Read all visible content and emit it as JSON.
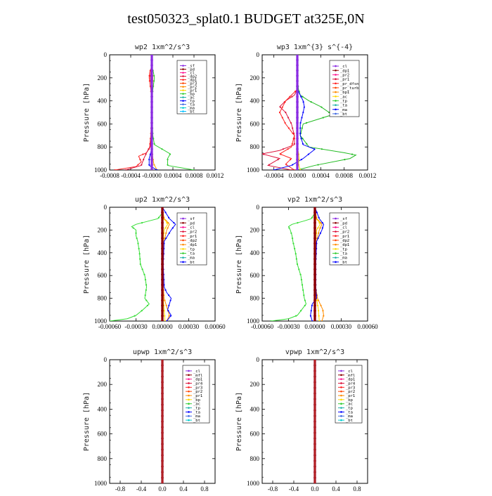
{
  "title": "test050323_splat0.1  BUDGET at325E,0N",
  "colors": {
    "sf": "#8a2be2",
    "pd": "#8b0000",
    "cl": "#ff1493",
    "dp1": "#dc143c",
    "dp2": "#ff2020",
    "dp3": "#ff4500",
    "pr1": "#ff6347",
    "pr2": "#ff8c00",
    "pr3": "#ffa500",
    "pr4": "#ff7f50",
    "bp": "#32cd32",
    "bp1": "#22bb22",
    "ac": "#20b2aa",
    "tp": "#0000ff",
    "ta": "#4169e1",
    "ma": "#00ced1",
    "bt": "#00bfff",
    "mfl": "#b22222",
    "pr_dfsn": "#ffd700",
    "pr_turb": "#ffc000",
    "dp2_green": "#33dd33"
  },
  "chart_data": [
    {
      "id": "wp2",
      "type": "line",
      "title": "wp2   1xm^2/s^3",
      "ylabel": "Pressure  [hPa]",
      "xlim": [
        -0.0008,
        0.0012
      ],
      "ylim": [
        1000,
        0
      ],
      "xticks": [
        -0.0008,
        -0.0004,
        0.0,
        0.0004,
        0.0008,
        0.0012
      ],
      "xticklabels": [
        "-0.0008",
        "-0.0004",
        "-0.0000",
        "0.0004",
        "0.0008",
        "0.0012"
      ],
      "yticks": [
        0,
        200,
        400,
        600,
        800,
        1000
      ],
      "legend": [
        "_sf",
        "_pd",
        "_cl",
        "_dp2",
        "_dp1",
        "_pr3",
        "_pr2",
        "_pr1",
        "_bp",
        "_ac",
        "_tp",
        "_ta",
        "_ma",
        "_bt"
      ],
      "series": [
        {
          "name": "_bp",
          "color": "#32cd32",
          "y": [
            1000,
            960,
            900,
            860,
            820,
            780,
            700,
            600,
            500,
            400,
            300,
            200,
            150,
            100,
            0
          ],
          "x": [
            0.0008,
            0.0003,
            0.0003,
            0.00035,
            0.0002,
            5e-05,
            2e-05,
            1e-05,
            0,
            0,
            2e-05,
            5e-05,
            3e-05,
            0,
            0
          ]
        },
        {
          "name": "_dp2",
          "color": "#ff2020",
          "y": [
            1000,
            970,
            930,
            880,
            850,
            800,
            700,
            600,
            500,
            400,
            300,
            200,
            150,
            100,
            0
          ],
          "x": [
            -0.0007,
            -0.0003,
            -0.0002,
            -0.00025,
            -0.0001,
            -4e-05,
            -2e-05,
            -1e-05,
            0,
            0,
            -2e-05,
            -5e-05,
            -4e-05,
            0,
            0
          ]
        },
        {
          "name": "_dp1",
          "color": "#dc143c",
          "y": [
            1000,
            960,
            900,
            850,
            800,
            700,
            600,
            500,
            400,
            300,
            200,
            150,
            100,
            0
          ],
          "x": [
            -0.0005,
            -0.0002,
            -0.00015,
            -0.0001,
            -3e-05,
            -1e-05,
            0,
            0,
            0,
            0,
            -3e-05,
            -2e-05,
            0,
            0
          ]
        },
        {
          "name": "_pr3",
          "color": "#ffa500",
          "y": [
            1000,
            950,
            900,
            850,
            800,
            700,
            500,
            300,
            200,
            150,
            0
          ],
          "x": [
            0.0001,
            4e-05,
            2e-05,
            1e-05,
            0,
            0,
            0,
            1e-05,
            2e-05,
            1e-05,
            0
          ]
        },
        {
          "name": "_tp",
          "color": "#0000ff",
          "y": [
            1000,
            960,
            900,
            850,
            800,
            700,
            500,
            300,
            150,
            0
          ],
          "x": [
            0.0001,
            -5e-05,
            -5e-05,
            -2e-05,
            0,
            0,
            0,
            0,
            1e-05,
            0
          ]
        },
        {
          "name": "_sf",
          "color": "#8a2be2",
          "y": [
            1000,
            800,
            600,
            400,
            200,
            0
          ],
          "x": [
            0,
            0,
            0,
            0,
            0,
            0
          ]
        }
      ]
    },
    {
      "id": "wp3",
      "type": "line",
      "title": "wp3   1xm^{3} s^{-4}",
      "ylabel": "Pressure  [hPa]",
      "xlim": [
        -0.0006,
        0.0012
      ],
      "ylim": [
        1000,
        0
      ],
      "xticks": [
        -0.0004,
        0.0,
        0.0004,
        0.0008,
        0.0012
      ],
      "xticklabels": [
        "-0.0004",
        "0.0000",
        "0.0004",
        "0.0008",
        "0.0012"
      ],
      "yticks": [
        0,
        200,
        400,
        600,
        800,
        1000
      ],
      "legend": [
        "_cl",
        "_dp1",
        "_pr2",
        "_pr1",
        "_pr_dfsn",
        "_pr_turb",
        "_bp1",
        "_ac",
        "_tp",
        "_ta",
        "_ma",
        "_bt"
      ],
      "series": [
        {
          "name": "_bp1",
          "color": "#22bb22",
          "y": [
            1000,
            960,
            900,
            870,
            850,
            800,
            700,
            600,
            520,
            450,
            400,
            350,
            300,
            200,
            100,
            0
          ],
          "x": [
            0,
            0.0003,
            0.0009,
            0.001,
            0.0008,
            0.0002,
            5e-05,
            0.0001,
            0.0006,
            0.0004,
            0.0002,
            5e-05,
            2e-05,
            0,
            0,
            0
          ]
        },
        {
          "name": "_dp1",
          "color": "#dc143c",
          "y": [
            1000,
            960,
            900,
            860,
            830,
            780,
            700,
            600,
            500,
            450,
            400,
            350,
            300,
            200,
            0
          ],
          "x": [
            -0.0001,
            -0.0005,
            -0.0003,
            -0.0006,
            -0.0003,
            -5e-05,
            -5e-05,
            -0.0001,
            -0.0002,
            -0.0003,
            -0.0002,
            -5e-05,
            0,
            0,
            0
          ]
        },
        {
          "name": "_pr2",
          "color": "#ff2020",
          "y": [
            1000,
            950,
            900,
            860,
            800,
            700,
            600,
            500,
            450,
            400,
            350,
            300,
            200,
            0
          ],
          "x": [
            -5e-05,
            -0.0002,
            -0.0001,
            -0.0003,
            -0.0001,
            -5e-05,
            -0.0002,
            -0.0003,
            -0.00025,
            -0.0002,
            -0.0001,
            0,
            0,
            0
          ]
        },
        {
          "name": "_tp",
          "color": "#0000ff",
          "y": [
            1000,
            960,
            900,
            860,
            820,
            780,
            700,
            600,
            500,
            450,
            400,
            350,
            300,
            200,
            0
          ],
          "x": [
            -0.0004,
            -0.0001,
            0.0001,
            0.0002,
            0.0003,
            0.0001,
            5e-05,
            5e-05,
            0.0001,
            0.00012,
            0.0001,
            5e-05,
            0,
            0,
            0
          ]
        },
        {
          "name": "_pr_dfsn",
          "color": "#ffd700",
          "y": [
            1000,
            950,
            900,
            850,
            800,
            700,
            500,
            300,
            0
          ],
          "x": [
            5e-05,
            2e-05,
            3e-05,
            2e-05,
            0,
            0,
            0,
            0,
            0
          ]
        },
        {
          "name": "_cl",
          "color": "#8a2be2",
          "y": [
            1000,
            800,
            600,
            400,
            200,
            0
          ],
          "x": [
            0,
            0,
            0,
            0,
            0,
            0
          ]
        }
      ]
    },
    {
      "id": "up2",
      "type": "line",
      "title": "up2   1xm^2/s^3",
      "ylabel": "Pressure  [hPa]",
      "xlim": [
        -0.0006,
        0.0006
      ],
      "ylim": [
        1000,
        0
      ],
      "xticks": [
        -0.0006,
        -0.0003,
        0.0,
        0.0003,
        0.0006
      ],
      "xticklabels": [
        "-0.00060",
        "-0.00030",
        "0.00000",
        "0.00030",
        "0.00060"
      ],
      "yticks": [
        0,
        200,
        400,
        600,
        800,
        1000
      ],
      "legend": [
        "_sf",
        "_pd",
        "_cl",
        "_pr2",
        "_pr1",
        "_dp2",
        "_dp1",
        "_tp",
        "_ta",
        "_ma",
        "_bt"
      ],
      "series": [
        {
          "name": "_dp2",
          "color": "#33dd33",
          "y": [
            1000,
            980,
            950,
            900,
            850,
            800,
            700,
            600,
            500,
            400,
            300,
            250,
            200,
            170,
            150,
            120,
            100,
            50,
            0
          ],
          "x": [
            -0.0006,
            -0.0004,
            -0.0003,
            -0.00022,
            -0.00015,
            -0.0002,
            -0.00018,
            -0.0002,
            -0.00025,
            -0.00026,
            -0.00028,
            -0.0003,
            -0.0003,
            -0.00035,
            -0.0003,
            -0.00015,
            -5e-05,
            0,
            0
          ]
        },
        {
          "name": "_pr2",
          "color": "#ff8c00",
          "y": [
            1000,
            950,
            900,
            850,
            800,
            700,
            500,
            300,
            200,
            150,
            120,
            100,
            0
          ],
          "x": [
            5e-05,
            8e-05,
            6e-05,
            4e-05,
            2e-05,
            1e-05,
            1e-05,
            2e-05,
            5e-05,
            8e-05,
            5e-05,
            2e-05,
            0
          ]
        },
        {
          "name": "_pr1",
          "color": "#ffd700",
          "y": [
            1000,
            900,
            800,
            600,
            400,
            200,
            150,
            120,
            100,
            0
          ],
          "x": [
            3e-05,
            2e-05,
            1e-05,
            0,
            0,
            2e-05,
            6e-05,
            4e-05,
            1e-05,
            0
          ]
        },
        {
          "name": "_tp",
          "color": "#0000ff",
          "y": [
            1000,
            950,
            900,
            850,
            800,
            750,
            700,
            500,
            300,
            200,
            150,
            100,
            0
          ],
          "x": [
            5e-05,
            0.0001,
            6e-05,
            8e-05,
            0.0001,
            5e-05,
            2e-05,
            1e-05,
            2e-05,
            0.0001,
            0.00015,
            8e-05,
            0
          ]
        },
        {
          "name": "_cl",
          "color": "#ff1493",
          "y": [
            1000,
            800,
            600,
            400,
            200,
            0
          ],
          "x": [
            0,
            0,
            0,
            0,
            0,
            0
          ]
        },
        {
          "name": "_pd",
          "color": "#8b0000",
          "y": [
            1000,
            800,
            600,
            400,
            200,
            0
          ],
          "x": [
            0,
            0,
            0,
            0,
            0,
            0
          ]
        }
      ]
    },
    {
      "id": "vp2",
      "type": "line",
      "title": "vp2   1xm^2/s^3",
      "ylabel": "Pressure  [hPa]",
      "xlim": [
        -0.0006,
        0.0006
      ],
      "ylim": [
        1000,
        0
      ],
      "xticks": [
        -0.0006,
        -0.0003,
        0.0,
        0.0003,
        0.0006
      ],
      "xticklabels": [
        "-0.00060",
        "-0.00030",
        "0.00000",
        "0.00030",
        "0.00060"
      ],
      "yticks": [
        0,
        200,
        400,
        600,
        800,
        1000
      ],
      "legend": [
        "_sf",
        "_pd",
        "_cl",
        "_pr2",
        "_pr1",
        "_dp2",
        "_dp1",
        "_tp",
        "_ta",
        "_ma",
        "_bt"
      ],
      "series": [
        {
          "name": "_dp2",
          "color": "#33dd33",
          "y": [
            1000,
            980,
            950,
            900,
            850,
            800,
            700,
            600,
            500,
            400,
            300,
            250,
            200,
            170,
            150,
            120,
            100,
            50,
            0
          ],
          "x": [
            -0.0005,
            -0.0003,
            -0.0002,
            -0.00015,
            -0.0001,
            -0.00012,
            -0.00014,
            -0.00016,
            -0.0002,
            -0.00022,
            -0.00025,
            -0.00026,
            -0.00028,
            -0.0003,
            -0.00026,
            -0.00012,
            -4e-05,
            0,
            0
          ]
        },
        {
          "name": "_pr2",
          "color": "#ff8c00",
          "y": [
            1000,
            950,
            900,
            850,
            800,
            700,
            500,
            300,
            200,
            150,
            120,
            100,
            0
          ],
          "x": [
            8e-05,
            0.0001,
            9e-05,
            6e-05,
            3e-05,
            1e-05,
            1e-05,
            2e-05,
            5e-05,
            8e-05,
            5e-05,
            2e-05,
            0
          ]
        },
        {
          "name": "_pr1",
          "color": "#ffd700",
          "y": [
            1000,
            900,
            800,
            600,
            400,
            200,
            150,
            120,
            100,
            0
          ],
          "x": [
            5e-05,
            4e-05,
            2e-05,
            0,
            0,
            2e-05,
            6e-05,
            4e-05,
            1e-05,
            0
          ]
        },
        {
          "name": "_tp",
          "color": "#0000ff",
          "y": [
            1000,
            950,
            900,
            850,
            800,
            700,
            500,
            300,
            200,
            150,
            100,
            0
          ],
          "x": [
            -3e-05,
            -5e-05,
            -4e-05,
            -3e-05,
            2e-05,
            1e-05,
            1e-05,
            2e-05,
            8e-05,
            0.0001,
            5e-05,
            0
          ]
        },
        {
          "name": "_cl",
          "color": "#ff1493",
          "y": [
            1000,
            800,
            600,
            400,
            200,
            0
          ],
          "x": [
            0,
            0,
            0,
            0,
            0,
            0
          ]
        },
        {
          "name": "_pd",
          "color": "#8b0000",
          "y": [
            1000,
            800,
            600,
            400,
            200,
            0
          ],
          "x": [
            0,
            0,
            0,
            0,
            0,
            0
          ]
        }
      ]
    },
    {
      "id": "upwp",
      "type": "line",
      "title": "upwp   1xm^2/s^3",
      "ylabel": "Pressure  [hPa]",
      "xlim": [
        -1.0,
        1.0
      ],
      "ylim": [
        1000,
        0
      ],
      "xticks": [
        -0.8,
        -0.4,
        0.0,
        0.4,
        0.8
      ],
      "xticklabels": [
        "-0.8",
        "-0.4",
        "0.0",
        "0.4",
        "0.8"
      ],
      "yticks": [
        0,
        200,
        400,
        600,
        800,
        1000
      ],
      "legend": [
        "_cl",
        "_mfl",
        "_dp1",
        "_pr4",
        "_pr3",
        "_pr2",
        "_pr1",
        "_bp",
        "_ac",
        "_tp",
        "_ta",
        "_ma",
        "_bt"
      ],
      "series": [
        {
          "name": "_cl",
          "color": "#8a2be2",
          "y": [
            1000,
            800,
            600,
            400,
            200,
            0
          ],
          "x": [
            0,
            0,
            0,
            0,
            0,
            0
          ]
        },
        {
          "name": "_mfl",
          "color": "#b22222",
          "y": [
            1000,
            800,
            600,
            400,
            200,
            0
          ],
          "x": [
            0,
            0,
            0,
            0,
            0,
            0
          ]
        }
      ]
    },
    {
      "id": "vpwp",
      "type": "line",
      "title": "vpwp   1xm^2/s^3",
      "ylabel": "Pressure  [hPa]",
      "xlim": [
        -1.0,
        1.0
      ],
      "ylim": [
        1000,
        0
      ],
      "xticks": [
        -0.8,
        -0.4,
        0.0,
        0.4,
        0.8
      ],
      "xticklabels": [
        "-0.8",
        "-0.4",
        "0.0",
        "0.4",
        "0.8"
      ],
      "yticks": [
        0,
        200,
        400,
        600,
        800,
        1000
      ],
      "legend": [
        "_cl",
        "_mfl",
        "_dp1",
        "_pr4",
        "_pr3",
        "_pr2",
        "_pr1",
        "_bp",
        "_ac",
        "_tp",
        "_ta",
        "_ma",
        "_bt"
      ],
      "series": [
        {
          "name": "_cl",
          "color": "#8a2be2",
          "y": [
            1000,
            800,
            600,
            400,
            200,
            0
          ],
          "x": [
            0,
            0,
            0,
            0,
            0,
            0
          ]
        },
        {
          "name": "_mfl",
          "color": "#b22222",
          "y": [
            1000,
            800,
            600,
            400,
            200,
            0
          ],
          "x": [
            0,
            0,
            0,
            0,
            0,
            0
          ]
        }
      ]
    }
  ]
}
